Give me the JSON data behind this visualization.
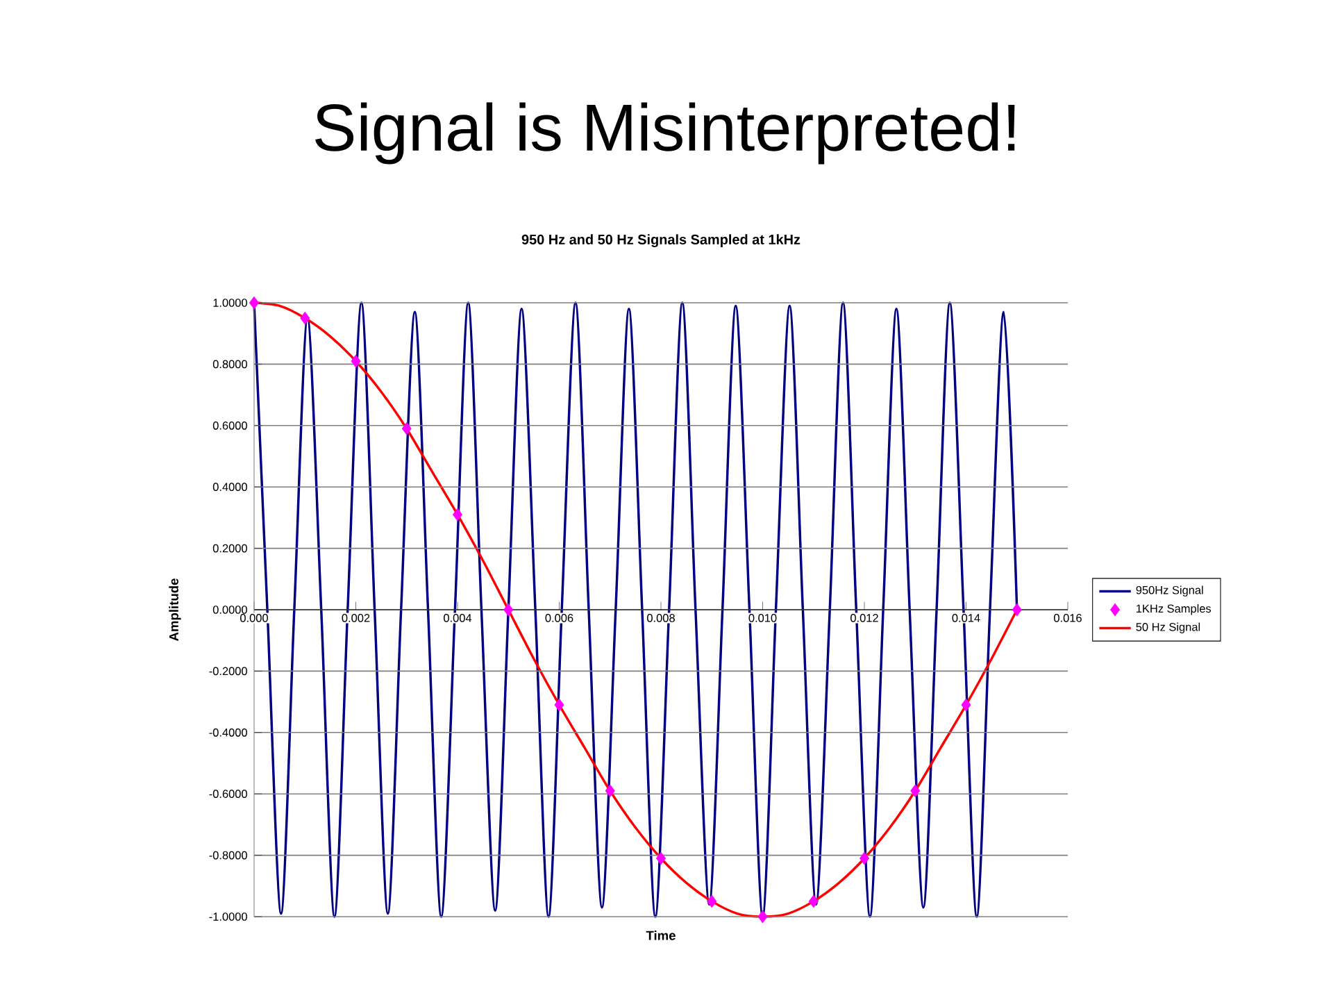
{
  "chart_data": {
    "type": "line",
    "title": "Signal is Misinterpreted!",
    "subtitle": "950 Hz and 50 Hz Signals Sampled at 1kHz",
    "xlabel": "Time",
    "ylabel": "Amplitude",
    "xlim": [
      0,
      0.016
    ],
    "ylim": [
      -1,
      1
    ],
    "xticks": [
      {
        "value": 0,
        "label": "0.000"
      },
      {
        "value": 0.002,
        "label": "0.002"
      },
      {
        "value": 0.004,
        "label": "0.004"
      },
      {
        "value": 0.006,
        "label": "0.006"
      },
      {
        "value": 0.008,
        "label": "0.008"
      },
      {
        "value": 0.01,
        "label": "0.010"
      },
      {
        "value": 0.012,
        "label": "0.012"
      },
      {
        "value": 0.014,
        "label": "0.014"
      },
      {
        "value": 0.016,
        "label": "0.016"
      }
    ],
    "yticks": [
      {
        "value": -1,
        "label": "-1.0000"
      },
      {
        "value": -0.8,
        "label": "-0.8000"
      },
      {
        "value": -0.6,
        "label": "-0.6000"
      },
      {
        "value": -0.4,
        "label": "-0.4000"
      },
      {
        "value": -0.2,
        "label": "-0.2000"
      },
      {
        "value": 0,
        "label": "0.0000"
      },
      {
        "value": 0.2,
        "label": "0.2000"
      },
      {
        "value": 0.4,
        "label": "0.4000"
      },
      {
        "value": 0.6,
        "label": "0.6000"
      },
      {
        "value": 0.8,
        "label": "0.8000"
      },
      {
        "value": 1,
        "label": "1.0000"
      }
    ],
    "grid": "y",
    "legend": "right",
    "series": [
      {
        "name": "950Hz Signal",
        "marker": "none",
        "color": "#000080",
        "x": [
          0,
          0.00026,
          0.00053,
          0.00079,
          0.00105,
          0.00132,
          0.00158,
          0.00184,
          0.00211,
          0.00237,
          0.00263,
          0.00289,
          0.00316,
          0.00342,
          0.00368,
          0.00395,
          0.00421,
          0.00447,
          0.00474,
          0.005,
          0.00526,
          0.00553,
          0.00579,
          0.00605,
          0.00632,
          0.00658,
          0.00684,
          0.00711,
          0.00737,
          0.00763,
          0.00789,
          0.00816,
          0.00842,
          0.00868,
          0.00895,
          0.00921,
          0.00947,
          0.00974,
          0.01,
          0.01026,
          0.01053,
          0.01079,
          0.01105,
          0.01132,
          0.01158,
          0.01184,
          0.01211,
          0.01237,
          0.01263,
          0.01289,
          0.01316,
          0.01342,
          0.01368,
          0.01395,
          0.01421,
          0.01447,
          0.01474,
          0.015
        ],
        "values": [
          1.0,
          0,
          -0.99,
          0,
          0.95,
          0,
          -1.0,
          0,
          1.0,
          0,
          -0.99,
          0,
          0.97,
          0,
          -1.0,
          0,
          1.0,
          0,
          -0.98,
          0,
          0.98,
          0,
          -1.0,
          0,
          1.0,
          0,
          -0.97,
          0,
          0.98,
          0,
          -1.0,
          0,
          1.0,
          0,
          -0.96,
          0,
          0.99,
          0,
          -1.0,
          0,
          0.99,
          0,
          -0.96,
          0,
          1.0,
          0,
          -1.0,
          0,
          0.98,
          0,
          -0.97,
          0,
          1.0,
          0,
          -1.0,
          0,
          0.97,
          0
        ]
      },
      {
        "name": "1KHz Samples",
        "type": "scatter",
        "marker": "diamond",
        "color": "#ff00ff",
        "x": [
          0,
          0.001,
          0.002,
          0.003,
          0.004,
          0.005,
          0.006,
          0.007,
          0.008,
          0.009,
          0.01,
          0.011,
          0.012,
          0.013,
          0.014,
          0.015
        ],
        "values": [
          1,
          0.95,
          0.81,
          0.59,
          0.31,
          0,
          -0.31,
          -0.59,
          -0.81,
          -0.95,
          -1,
          -0.95,
          -0.81,
          -0.59,
          -0.31,
          0
        ]
      },
      {
        "name": "50 Hz Signal",
        "marker": "none",
        "color": "#ff0000",
        "x": [
          0,
          0.0005,
          0.001,
          0.0015,
          0.002,
          0.0025,
          0.003,
          0.0035,
          0.004,
          0.0045,
          0.005,
          0.0055,
          0.006,
          0.0065,
          0.007,
          0.0075,
          0.008,
          0.0085,
          0.009,
          0.0095,
          0.01,
          0.0105,
          0.011,
          0.0115,
          0.012,
          0.0125,
          0.013,
          0.0135,
          0.014,
          0.0145,
          0.015
        ],
        "values": [
          1,
          0.99,
          0.95,
          0.89,
          0.81,
          0.71,
          0.59,
          0.45,
          0.31,
          0.16,
          0,
          -0.16,
          -0.31,
          -0.45,
          -0.59,
          -0.71,
          -0.81,
          -0.89,
          -0.95,
          -0.99,
          -1,
          -0.99,
          -0.95,
          -0.89,
          -0.81,
          -0.71,
          -0.59,
          -0.45,
          -0.31,
          -0.16,
          0
        ]
      }
    ]
  }
}
